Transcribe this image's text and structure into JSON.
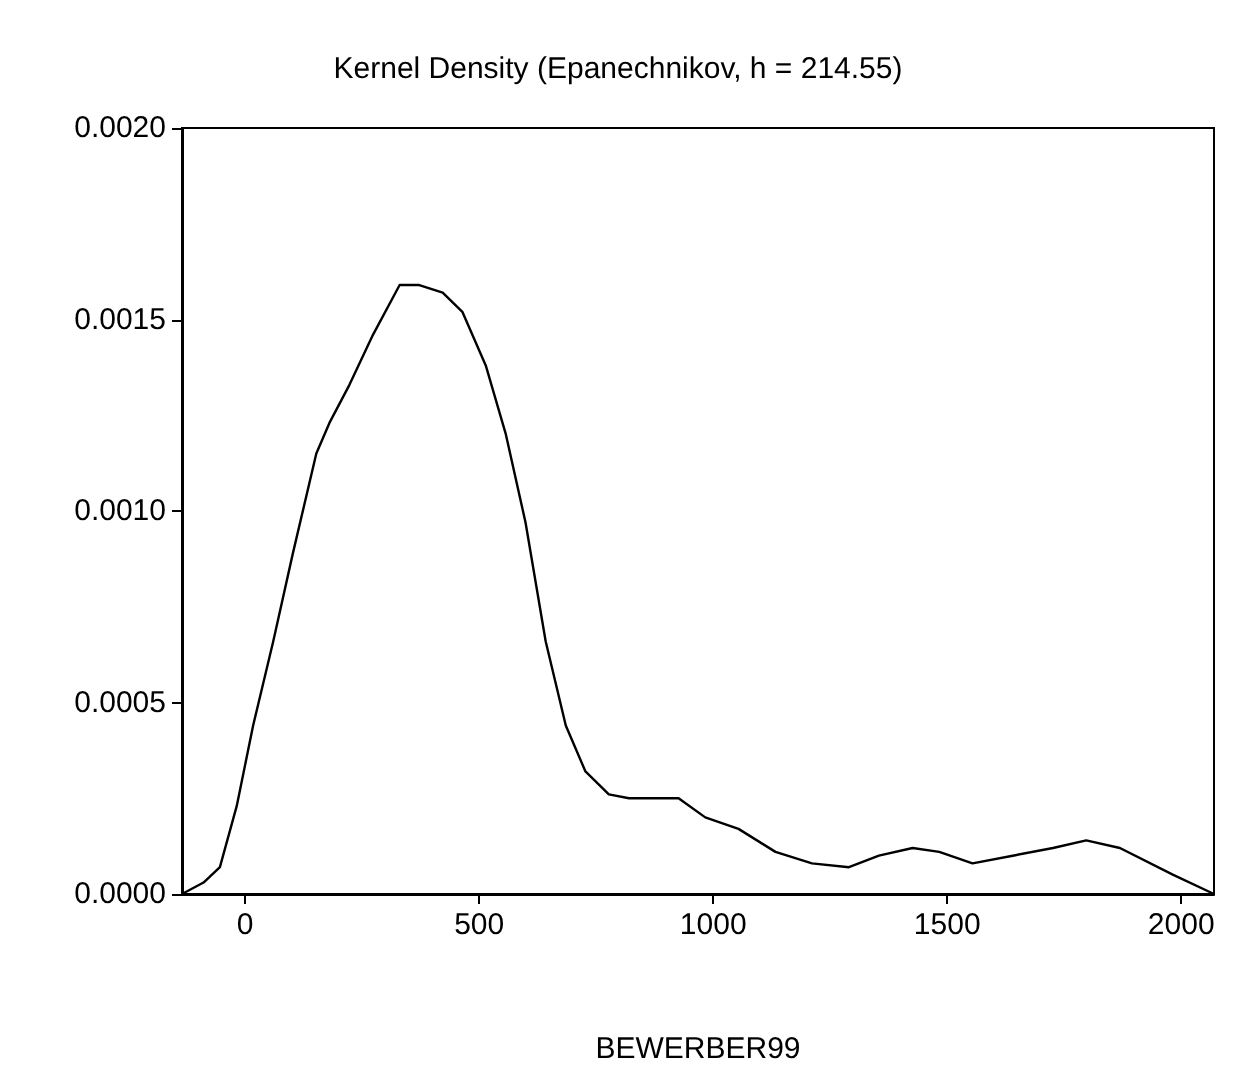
{
  "chart_data": {
    "type": "line",
    "title": "Kernel Density (Epanechnikov, h = 214.55)",
    "xlabel": "BEWERBER99",
    "x": [
      -135,
      -89,
      -54,
      -18,
      17,
      60,
      102,
      152,
      180,
      223,
      273,
      330,
      372,
      422,
      464,
      514,
      557,
      599,
      642,
      685,
      727,
      777,
      820,
      926,
      983,
      1054,
      1133,
      1211,
      1290,
      1354,
      1426,
      1483,
      1554,
      1640,
      1726,
      1797,
      1869,
      1983,
      2070
    ],
    "series": [
      {
        "color": "#000000",
        "values": [
          0,
          3e-05,
          7e-05,
          0.00023,
          0.00044,
          0.00066,
          0.00089,
          0.00115,
          0.00123,
          0.00133,
          0.00146,
          0.00159,
          0.00159,
          0.00157,
          0.00152,
          0.00138,
          0.0012,
          0.00097,
          0.00066,
          0.00044,
          0.00032,
          0.00026,
          0.00025,
          0.00025,
          0.0002,
          0.00017,
          0.00011,
          8e-05,
          7e-05,
          0.0001,
          0.00012,
          0.00011,
          8e-05,
          0.0001,
          0.00012,
          0.00014,
          0.00012,
          5e-05,
          0
        ]
      }
    ],
    "xlim": [
      -135,
      2070
    ],
    "xticks": [
      0,
      500,
      1000,
      1500,
      2000
    ],
    "ylim": [
      0,
      0.002
    ],
    "yticks": [
      {
        "value": 0,
        "label": "0.0000"
      },
      {
        "value": 0.0005,
        "label": "0.0005"
      },
      {
        "value": 0.001,
        "label": "0.0010"
      },
      {
        "value": 0.0015,
        "label": "0.0015"
      },
      {
        "value": 0.002,
        "label": "0.0020"
      }
    ],
    "marker": "none",
    "line_style": "solid"
  }
}
